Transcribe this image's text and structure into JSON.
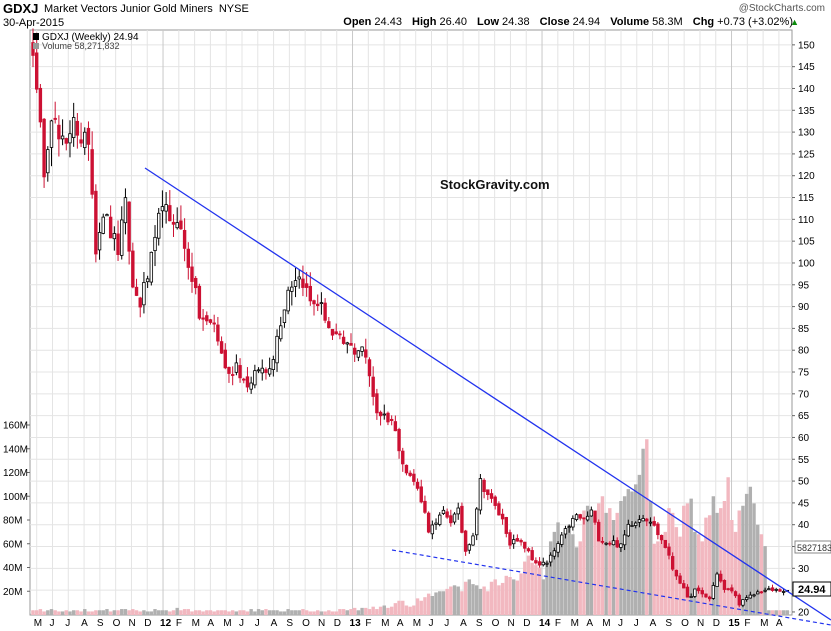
{
  "header": {
    "symbol": "GDXJ",
    "name": "Market Vectors Junior Gold Miners",
    "exchange": "NYSE",
    "date": "30-Apr-2015",
    "brand": "@StockCharts.com",
    "open_label": "Open",
    "open": "24.43",
    "high_label": "High",
    "high": "26.40",
    "low_label": "Low",
    "low": "24.38",
    "close_label": "Close",
    "close": "24.94",
    "volume_label": "Volume",
    "volume": "58.3M",
    "chg_label": "Chg",
    "chg": "+0.73 (+3.02%)"
  },
  "legend": {
    "price_series": "GDXJ (Weekly) 24.94",
    "volume_series": "Volume 58,271,832"
  },
  "watermark": "StockGravity.com",
  "colors": {
    "up": "#000000",
    "down": "#cc1133",
    "trendline": "#2233ee",
    "vol_up": "#b0b0b0",
    "vol_down": "#f2b8c0",
    "grid": "#e4e4e4"
  },
  "chart_data": {
    "type": "candlestick",
    "timeframe": "Weekly",
    "x_start": "2011-05",
    "x_end": "2015-04-30",
    "x_tick_labels": [
      "M",
      "J",
      "J",
      "A",
      "S",
      "O",
      "N",
      "D",
      "12",
      "F",
      "M",
      "A",
      "M",
      "J",
      "J",
      "A",
      "S",
      "O",
      "N",
      "D",
      "13",
      "F",
      "M",
      "A",
      "M",
      "J",
      "J",
      "A",
      "S",
      "O",
      "N",
      "D",
      "14",
      "F",
      "M",
      "A",
      "M",
      "J",
      "J",
      "A",
      "S",
      "O",
      "N",
      "D",
      "15",
      "F",
      "M",
      "A"
    ],
    "price_axis": {
      "ticks": [
        20,
        25,
        30,
        35,
        40,
        45,
        50,
        55,
        60,
        65,
        70,
        75,
        80,
        85,
        90,
        95,
        100,
        105,
        110,
        115,
        120,
        125,
        130,
        135,
        140,
        145,
        150
      ],
      "ylim": [
        20,
        151
      ]
    },
    "volume_axis": {
      "ticks": [
        "20M",
        "40M",
        "60M",
        "80M",
        "100M",
        "120M",
        "140M",
        "160M"
      ],
      "ylim_millions": [
        0,
        160
      ]
    },
    "last_close_label": "24.94",
    "last_volume_label": "58271832",
    "price_path": [
      [
        0,
        150
      ],
      [
        1,
        138
      ],
      [
        3,
        122
      ],
      [
        5,
        135
      ],
      [
        7,
        128
      ],
      [
        9,
        126
      ],
      [
        11,
        135
      ],
      [
        13,
        126
      ],
      [
        15,
        129
      ],
      [
        17,
        104
      ],
      [
        19,
        112
      ],
      [
        21,
        107
      ],
      [
        23,
        103
      ],
      [
        25,
        113
      ],
      [
        27,
        94
      ],
      [
        29,
        91
      ],
      [
        31,
        97
      ],
      [
        33,
        104
      ],
      [
        35,
        115
      ],
      [
        37,
        108
      ],
      [
        39,
        111
      ],
      [
        41,
        103
      ],
      [
        43,
        97
      ],
      [
        45,
        88
      ],
      [
        47,
        86
      ],
      [
        49,
        86
      ],
      [
        51,
        79
      ],
      [
        53,
        74
      ],
      [
        55,
        77
      ],
      [
        57,
        73
      ],
      [
        59,
        72
      ],
      [
        61,
        76
      ],
      [
        63,
        75
      ],
      [
        65,
        79
      ],
      [
        67,
        87
      ],
      [
        69,
        94
      ],
      [
        71,
        97
      ],
      [
        73,
        96
      ],
      [
        75,
        91
      ],
      [
        77,
        91
      ],
      [
        79,
        88
      ],
      [
        81,
        83
      ],
      [
        83,
        82
      ],
      [
        85,
        81
      ],
      [
        87,
        80
      ],
      [
        89,
        81
      ],
      [
        91,
        74
      ],
      [
        93,
        66
      ],
      [
        95,
        65
      ],
      [
        97,
        64
      ],
      [
        99,
        58
      ],
      [
        101,
        52
      ],
      [
        103,
        50
      ],
      [
        105,
        46
      ],
      [
        107,
        39
      ],
      [
        109,
        40
      ],
      [
        111,
        43
      ],
      [
        113,
        41
      ],
      [
        115,
        43
      ],
      [
        117,
        34
      ],
      [
        119,
        38
      ],
      [
        121,
        50
      ],
      [
        123,
        47
      ],
      [
        125,
        44
      ],
      [
        127,
        41
      ],
      [
        129,
        36
      ],
      [
        131,
        36
      ],
      [
        133,
        35
      ],
      [
        135,
        32
      ],
      [
        137,
        31
      ],
      [
        139,
        31
      ],
      [
        141,
        34
      ],
      [
        143,
        37
      ],
      [
        145,
        40
      ],
      [
        147,
        42
      ],
      [
        149,
        41
      ],
      [
        151,
        43
      ],
      [
        153,
        37
      ],
      [
        155,
        36
      ],
      [
        157,
        36
      ],
      [
        159,
        35
      ],
      [
        161,
        40
      ],
      [
        163,
        41
      ],
      [
        165,
        42
      ],
      [
        167,
        41
      ],
      [
        169,
        38
      ],
      [
        171,
        35
      ],
      [
        173,
        30
      ],
      [
        175,
        27
      ],
      [
        177,
        23
      ],
      [
        179,
        25
      ],
      [
        181,
        24
      ],
      [
        183,
        23
      ],
      [
        185,
        29
      ],
      [
        187,
        25
      ],
      [
        189,
        25
      ],
      [
        191,
        22
      ],
      [
        193,
        23
      ],
      [
        195,
        24
      ],
      [
        197,
        24.94
      ]
    ],
    "volume_millions": [
      4,
      4,
      5,
      3,
      4,
      5,
      4,
      3,
      3,
      4,
      3,
      4,
      4,
      3,
      5,
      3,
      3,
      4,
      4,
      4,
      5,
      3,
      4,
      4,
      5,
      5,
      4,
      5,
      4,
      3,
      4,
      3,
      3,
      5,
      4,
      4,
      4,
      3,
      4,
      6,
      4,
      5,
      5,
      3,
      4,
      4,
      3,
      4,
      4,
      3,
      4,
      4,
      4,
      3,
      4,
      3,
      4,
      4,
      3,
      5,
      3,
      5,
      4,
      5,
      4,
      4,
      4,
      3,
      3,
      5,
      4,
      4,
      4,
      5,
      4,
      3,
      3,
      4,
      3,
      3,
      4,
      3,
      3,
      5,
      5,
      4,
      5,
      6,
      4,
      6,
      6,
      5,
      7,
      5,
      7,
      8,
      6,
      7,
      10,
      12,
      12,
      8,
      7,
      8,
      14,
      12,
      15,
      18,
      16,
      19,
      20,
      20,
      22,
      24,
      25,
      24,
      20,
      28,
      30,
      26,
      25,
      22,
      24,
      20,
      28,
      30,
      25,
      27,
      33,
      32,
      30,
      29,
      35,
      45,
      50,
      44,
      42,
      40,
      30,
      45,
      62,
      70,
      78,
      66,
      72,
      76,
      68,
      57,
      62,
      88,
      92,
      86,
      82,
      94,
      100,
      86,
      90,
      80,
      86,
      96,
      100,
      106,
      104,
      110,
      118,
      140,
      148,
      96,
      60,
      62,
      66,
      70,
      90,
      86,
      74,
      66,
      92,
      94,
      98,
      70,
      68,
      62,
      82,
      84,
      100,
      86,
      90,
      96,
      116,
      80,
      70,
      88,
      92,
      102,
      108,
      94,
      76,
      68,
      58
    ]
  }
}
